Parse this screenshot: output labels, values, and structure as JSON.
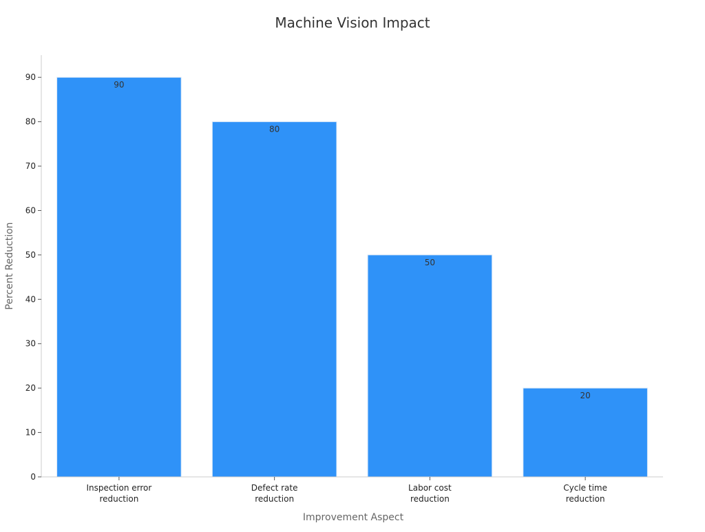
{
  "chart_data": {
    "type": "bar",
    "title": "Machine Vision Impact",
    "xlabel": "Improvement Aspect",
    "ylabel": "Percent Reduction",
    "categories": [
      [
        "Inspection error",
        "reduction"
      ],
      [
        "Defect rate",
        "reduction"
      ],
      [
        "Labor cost",
        "reduction"
      ],
      [
        "Cycle time",
        "reduction"
      ]
    ],
    "values": [
      90,
      80,
      50,
      20
    ],
    "ylim": [
      0,
      95
    ],
    "yticks": [
      0,
      10,
      20,
      30,
      40,
      50,
      60,
      70,
      80,
      90
    ],
    "grid": false,
    "legend": "none",
    "colors": {
      "bar": "#2f92f8",
      "bar_edge": "#dbe9f7"
    }
  }
}
